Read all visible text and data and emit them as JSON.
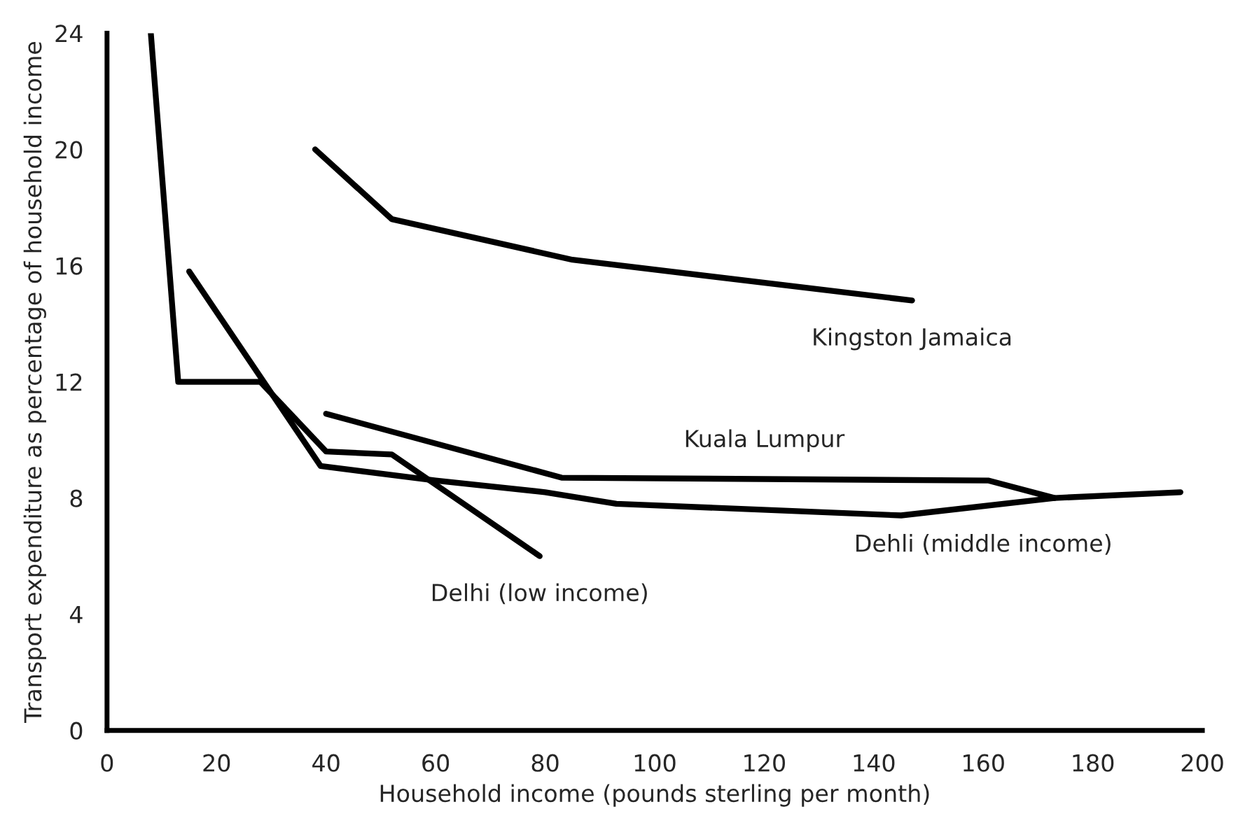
{
  "chart_data": {
    "type": "line",
    "xlabel": "Household income (pounds sterling per month)",
    "ylabel": "Transport expenditure as percentage of household income",
    "xlim": [
      0,
      200
    ],
    "ylim": [
      0,
      24
    ],
    "xticks": [
      0,
      20,
      40,
      60,
      80,
      100,
      120,
      140,
      160,
      180,
      200
    ],
    "yticks": [
      0,
      4,
      8,
      12,
      16,
      20,
      24
    ],
    "grid": false,
    "marker": "none",
    "line_style": "solid",
    "series": [
      {
        "color": "#000000",
        "x": [
          38,
          52,
          85,
          147
        ],
        "values": [
          20,
          17.6,
          16.2,
          14.8
        ]
      },
      {
        "color": "#000000",
        "x": [
          40,
          83,
          161,
          173
        ],
        "values": [
          10.9,
          8.7,
          8.6,
          8.0
        ]
      },
      {
        "color": "#000000",
        "x": [
          15,
          39,
          60,
          80,
          93,
          145,
          173,
          196
        ],
        "values": [
          15.8,
          9.1,
          8.6,
          8.2,
          7.8,
          7.4,
          8.0,
          8.2
        ]
      },
      {
        "color": "#000000",
        "x": [
          8,
          13,
          28,
          40,
          52,
          79
        ],
        "values": [
          24,
          12,
          12,
          9.6,
          9.5,
          6
        ]
      }
    ],
    "annotations": [
      {
        "text": "Kingston Jamaica",
        "x": 147,
        "y": 14.8
      },
      {
        "text": "Kuala Lumpur",
        "x": 120,
        "y": 8.65
      },
      {
        "text": "Dehli (middle income)",
        "x": 160,
        "y": 7.7
      },
      {
        "text": "Delhi (low income)",
        "x": 79,
        "y": 6
      }
    ]
  }
}
